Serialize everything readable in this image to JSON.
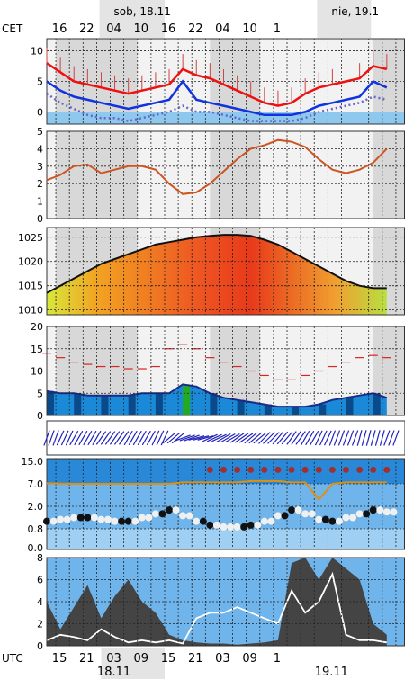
{
  "top_axis": {
    "tz_label": "CET",
    "date_labels": [
      "sob, 18.11",
      "nie, 19.1"
    ],
    "hour_labels": [
      "16",
      "22",
      "04",
      "10",
      "16",
      "22",
      "04",
      "10",
      "1"
    ]
  },
  "bottom_axis": {
    "tz_label": "UTC",
    "hour_labels": [
      "15",
      "21",
      "03",
      "09",
      "15",
      "21",
      "03",
      "09",
      "1"
    ],
    "date_labels": [
      "18.11",
      "19.11"
    ]
  },
  "colors": {
    "temperature": "#ee1111",
    "dewpoint": "#1133dd",
    "wind_chill": "#6666cc",
    "gust": "#cc4444",
    "cloud_fill": "#8ec8ee",
    "panel_bg": "#d8d8d8",
    "panel_bg_light": "#f2f2f2",
    "pressure_line": "#111111",
    "wind_arrows": "#2222bb",
    "precip_dark": "#444444",
    "precip_mid": "#888888",
    "sunshine": "#ffffff"
  },
  "chart_data": [
    {
      "type": "line",
      "panel": "temperature",
      "ylim": [
        -2,
        12
      ],
      "y_ticks": [
        "10",
        "5",
        "0"
      ],
      "x_hours": [
        0,
        3,
        6,
        9,
        12,
        15,
        18,
        21,
        24,
        27,
        30,
        33,
        36,
        39,
        42,
        45,
        48,
        51,
        54,
        57,
        60,
        63,
        66,
        69,
        72,
        75
      ],
      "series": [
        {
          "values": [
            8,
            6.5,
            5,
            4.5,
            4,
            3.5,
            3,
            3.5,
            4,
            4.5,
            7,
            6,
            5.5,
            4.5,
            3.5,
            2.5,
            1.5,
            1,
            1.5,
            3,
            4,
            4.5,
            5,
            5.5,
            7.5,
            7
          ]
        },
        {
          "values": [
            5,
            3.5,
            2.5,
            2,
            1.5,
            1,
            0.5,
            1,
            1.5,
            2,
            5,
            2,
            1.5,
            1,
            0.5,
            0,
            -0.5,
            -0.5,
            -0.5,
            0,
            1,
            1.5,
            2,
            2.5,
            5,
            4
          ]
        },
        {
          "values": [
            3,
            1.5,
            0.5,
            -0.5,
            -1,
            -1,
            -1.5,
            -1,
            -0.5,
            0,
            1,
            0,
            0,
            -0.5,
            -1,
            -1.5,
            -1.5,
            -1.5,
            -1.5,
            -1,
            0,
            0.5,
            1,
            1.5,
            2.5,
            2
          ]
        }
      ]
    },
    {
      "type": "line",
      "panel": "wind_speed",
      "ylim": [
        0,
        5
      ],
      "y_ticks": [
        "5",
        "4",
        "3",
        "2",
        "1",
        "0"
      ],
      "x_hours": [
        0,
        3,
        6,
        9,
        12,
        15,
        18,
        21,
        24,
        27,
        30,
        33,
        36,
        39,
        42,
        45,
        48,
        51,
        54,
        57,
        60,
        63,
        66,
        69,
        72,
        75
      ],
      "series": [
        {
          "values": [
            2.2,
            2.5,
            3,
            3.1,
            2.6,
            2.8,
            3,
            3,
            2.8,
            2,
            1.4,
            1.5,
            2,
            2.7,
            3.4,
            4,
            4.2,
            4.5,
            4.4,
            4.1,
            3.4,
            2.8,
            2.6,
            2.8,
            3.2,
            4
          ]
        }
      ]
    },
    {
      "type": "area",
      "panel": "pressure",
      "ylim": [
        1009,
        1027
      ],
      "y_ticks": [
        "1025",
        "1020",
        "1015",
        "1010"
      ],
      "x_hours": [
        0,
        3,
        6,
        9,
        12,
        15,
        18,
        21,
        24,
        27,
        30,
        33,
        36,
        39,
        42,
        45,
        48,
        51,
        54,
        57,
        60,
        63,
        66,
        69,
        72,
        75
      ],
      "series": [
        {
          "values": [
            1013.5,
            1015,
            1016.5,
            1018,
            1019.5,
            1020.5,
            1021.5,
            1022.5,
            1023.5,
            1024,
            1024.5,
            1025,
            1025.3,
            1025.5,
            1025.5,
            1025.3,
            1024.5,
            1023.5,
            1022,
            1020.5,
            1019,
            1017.5,
            1016,
            1015,
            1014.5,
            1014.5
          ]
        }
      ]
    },
    {
      "type": "area",
      "panel": "cloud_and_bars",
      "ylim": [
        0,
        20
      ],
      "y_ticks": [
        "20",
        "15",
        "10",
        "5",
        "0"
      ],
      "x_hours": [
        0,
        3,
        6,
        9,
        12,
        15,
        18,
        21,
        24,
        27,
        30,
        33,
        36,
        39,
        42,
        45,
        48,
        51,
        54,
        57,
        60,
        63,
        66,
        69,
        72,
        75
      ],
      "series": [
        {
          "values": [
            5.5,
            5,
            5,
            4.5,
            4.5,
            4.5,
            4.5,
            5,
            5,
            5,
            7,
            6.5,
            5,
            4,
            3.5,
            3,
            2.5,
            2,
            2,
            2,
            2.5,
            3.5,
            4,
            4.5,
            5,
            4
          ]
        },
        {
          "values": [
            14,
            13,
            12,
            11.5,
            11,
            11,
            10.5,
            10.5,
            11,
            15,
            16,
            15,
            13,
            12,
            11,
            10,
            9,
            8,
            8,
            9,
            10,
            11,
            12,
            13,
            13.5,
            13
          ]
        }
      ]
    },
    {
      "type": "scatter",
      "panel": "wind_direction",
      "x_hours": [
        0,
        3,
        6,
        9,
        12,
        15,
        18,
        21,
        24,
        27,
        30,
        33,
        36,
        39,
        42,
        45,
        48,
        51,
        54,
        57,
        60,
        63,
        66,
        69,
        72,
        75
      ],
      "series": [
        {
          "values": [
            200,
            205,
            210,
            210,
            215,
            215,
            210,
            210,
            205,
            230,
            250,
            255,
            245,
            240,
            235,
            230,
            225,
            220,
            215,
            210,
            205,
            200,
            200,
            195,
            195,
            200
          ]
        }
      ]
    },
    {
      "type": "scatter",
      "panel": "cloud_layers",
      "ylim": [
        0,
        16
      ],
      "y_ticks": [
        "15.0",
        "7.0",
        "2.0",
        "0.8",
        "0.0"
      ],
      "x_hours": [
        0,
        3,
        6,
        9,
        12,
        15,
        18,
        21,
        24,
        27,
        30,
        33,
        36,
        39,
        42,
        45,
        48,
        51,
        54,
        57,
        60,
        63,
        66,
        69,
        72,
        75
      ],
      "series": [
        {
          "values": [
            1.2,
            1.3,
            1.4,
            1.4,
            1.3,
            1.2,
            1.2,
            1.4,
            1.6,
            1.8,
            1.5,
            1.2,
            1,
            0.9,
            0.9,
            1,
            1.2,
            1.5,
            1.8,
            1.6,
            1.3,
            1.2,
            1.4,
            1.6,
            1.8,
            1.7
          ]
        },
        {
          "values": [
            7.2,
            7.1,
            7,
            7,
            7,
            7,
            7,
            7,
            7,
            7,
            7.5,
            7.5,
            7.5,
            7.5,
            7.5,
            8,
            8,
            8,
            7.5,
            7.5,
            3.5,
            7,
            7.5,
            7.5,
            7.5,
            7.5
          ]
        }
      ]
    },
    {
      "type": "area",
      "panel": "precipitation_and_sun",
      "ylim": [
        0,
        8
      ],
      "y_ticks": [
        "8",
        "6",
        "4",
        "2",
        "0"
      ],
      "x_hours": [
        0,
        3,
        6,
        9,
        12,
        15,
        18,
        21,
        24,
        27,
        30,
        33,
        36,
        39,
        42,
        45,
        48,
        51,
        54,
        57,
        60,
        63,
        66,
        69,
        72,
        75
      ],
      "series": [
        {
          "values": [
            4,
            1.5,
            3.5,
            5.5,
            2.5,
            4.5,
            6,
            4,
            3,
            1,
            0.5,
            0.3,
            0.2,
            0.2,
            0.1,
            0.2,
            0.3,
            0.5,
            7.5,
            8,
            6,
            8,
            7,
            6,
            2,
            1
          ]
        },
        {
          "values": [
            0.5,
            1,
            0.8,
            0.5,
            1.5,
            0.8,
            0.3,
            0.5,
            0.3,
            0.5,
            0.2,
            2.5,
            3,
            3,
            3.5,
            3,
            2.5,
            2,
            5,
            3,
            4,
            6.5,
            1,
            0.5,
            0.5,
            0.3
          ]
        }
      ]
    }
  ]
}
